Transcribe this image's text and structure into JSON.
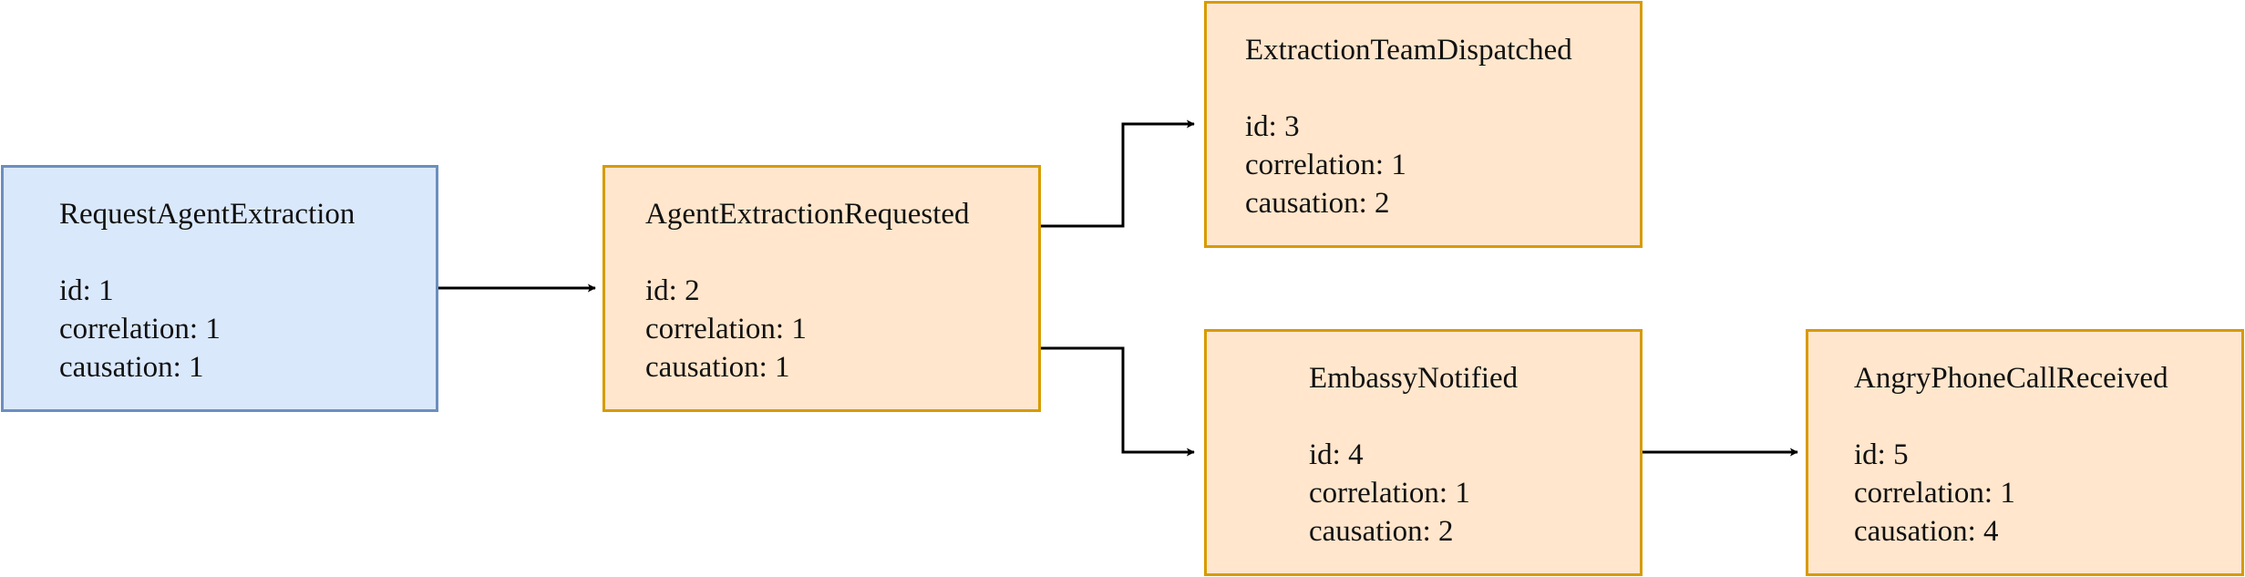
{
  "colors": {
    "command_fill": "#dae8fc",
    "command_border": "#6c8ebf",
    "event_fill": "#ffe6cc",
    "event_border": "#d79b00",
    "arrow": "#000000"
  },
  "nodes": [
    {
      "title": "RequestAgentExtraction",
      "id": "id: 1",
      "correlation": "correlation: 1",
      "causation": "causation: 1"
    },
    {
      "title": "AgentExtractionRequested",
      "id": "id: 2",
      "correlation": "correlation: 1",
      "causation": "causation: 1"
    },
    {
      "title": "ExtractionTeamDispatched",
      "id": "id: 3",
      "correlation": "correlation: 1",
      "causation": "causation: 2"
    },
    {
      "title": "EmbassyNotified",
      "id": "id: 4",
      "correlation": "correlation: 1",
      "causation": "causation: 2"
    },
    {
      "title": "AngryPhoneCallReceived",
      "id": "id: 5",
      "correlation": "correlation: 1",
      "causation": "causation: 4"
    }
  ],
  "edges": [
    {
      "from": "RequestAgentExtraction",
      "to": "AgentExtractionRequested"
    },
    {
      "from": "AgentExtractionRequested",
      "to": "ExtractionTeamDispatched"
    },
    {
      "from": "AgentExtractionRequested",
      "to": "EmbassyNotified"
    },
    {
      "from": "EmbassyNotified",
      "to": "AngryPhoneCallReceived"
    }
  ]
}
